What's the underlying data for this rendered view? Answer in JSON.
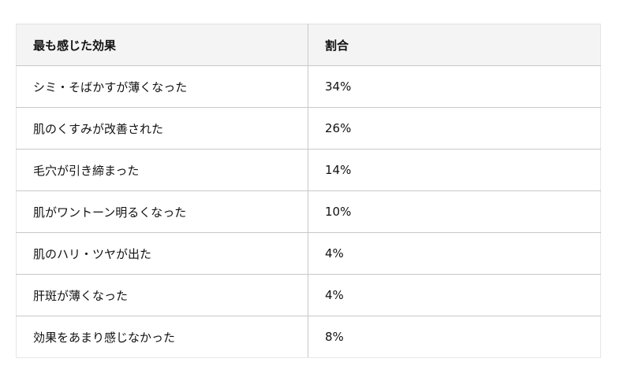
{
  "table": {
    "headers": [
      "最も感じた効果",
      "割合"
    ],
    "rows": [
      [
        "シミ・そばかすが薄くなった",
        "34%"
      ],
      [
        "肌のくすみが改善された",
        "26%"
      ],
      [
        "毛穴が引き締まった",
        "14%"
      ],
      [
        "肌がワントーン明るくなった",
        "10%"
      ],
      [
        "肌のハリ・ツヤが出た",
        "4%"
      ],
      [
        "肝斑が薄くなった",
        "4%"
      ],
      [
        "効果をあまり感じなかった",
        "8%"
      ]
    ]
  }
}
